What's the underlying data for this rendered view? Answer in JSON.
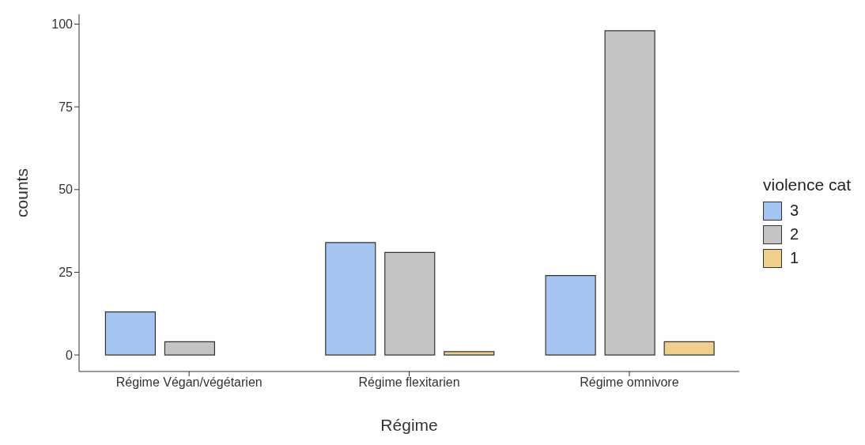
{
  "chart_data": {
    "type": "bar",
    "xlabel": "Régime",
    "ylabel": "counts",
    "legend_title": "violence cat",
    "legend": "right",
    "categories": [
      "Régime Végan/végétarien",
      "Régime flexitarien",
      "Régime omnivore"
    ],
    "series": [
      {
        "name": "3",
        "color": "#a6c4f0",
        "values": [
          13,
          34,
          24
        ]
      },
      {
        "name": "2",
        "color": "#c4c4c4",
        "values": [
          4,
          31,
          98
        ]
      },
      {
        "name": "1",
        "color": "#f0ce8c",
        "values": [
          0,
          1,
          4
        ]
      }
    ],
    "ylim": [
      -5,
      103
    ],
    "yticks": [
      0,
      25,
      50,
      75,
      100
    ],
    "grid": false
  }
}
